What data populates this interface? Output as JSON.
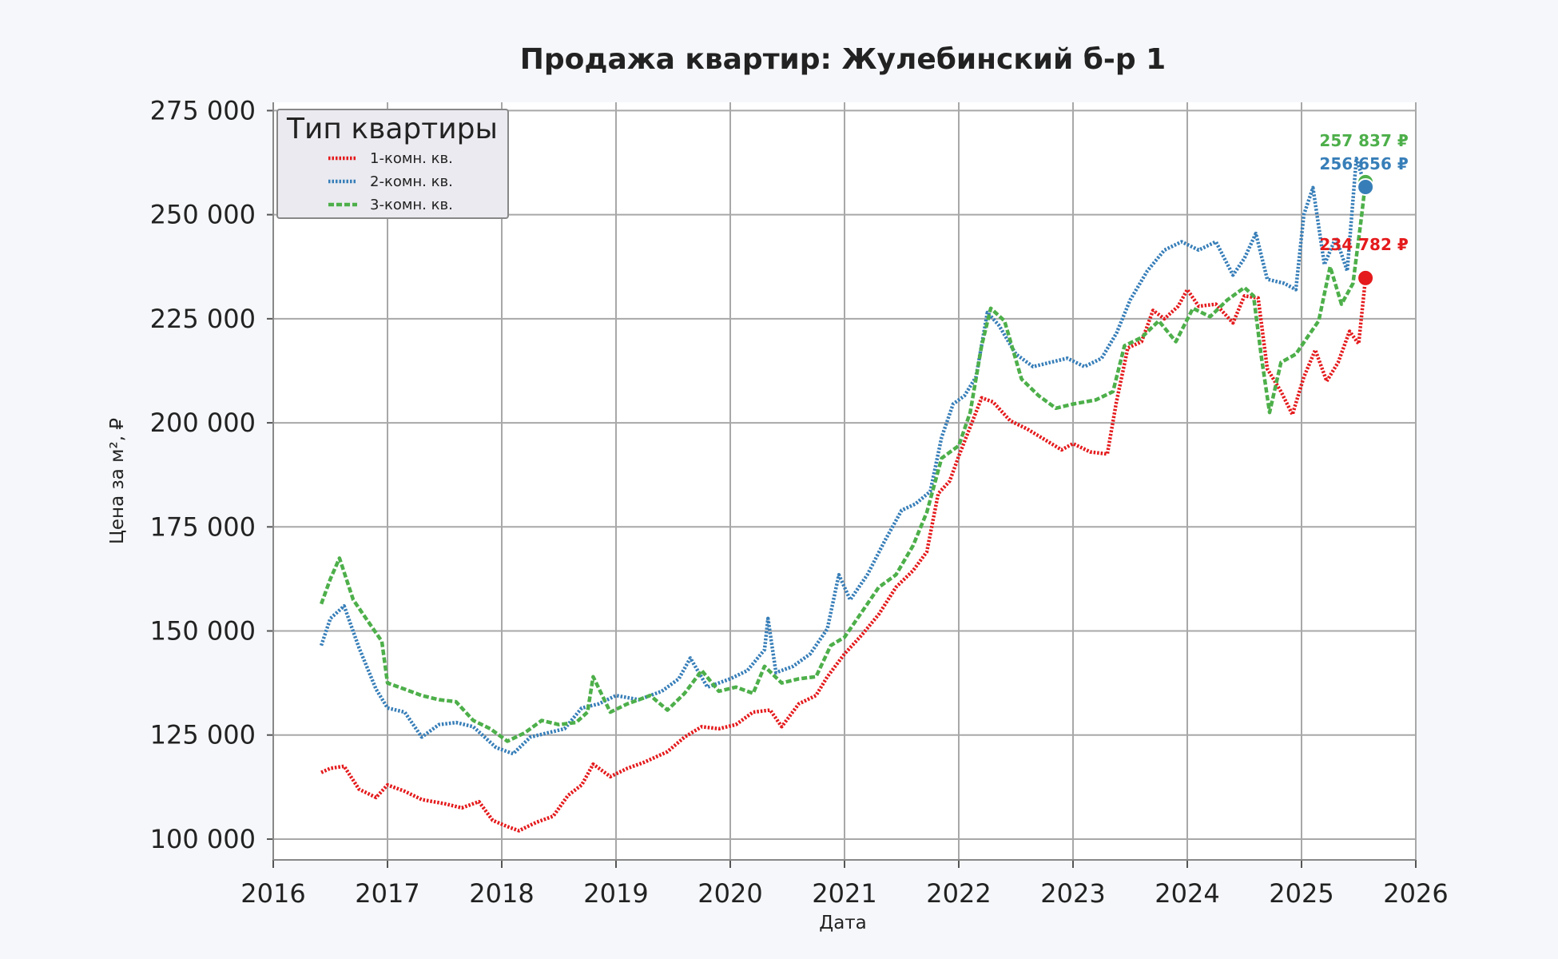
{
  "chart_data": {
    "type": "line",
    "title": "Продажа квартир: Жулебинский б-р 1",
    "xlabel": "Дата",
    "ylabel": "Цена за м², ₽",
    "xlim": [
      2016,
      2026
    ],
    "ylim": [
      95000,
      277000
    ],
    "x_ticks": [
      "2016",
      "2017",
      "2018",
      "2019",
      "2020",
      "2021",
      "2022",
      "2023",
      "2024",
      "2025",
      "2026"
    ],
    "y_ticks": [
      "100 000",
      "125 000",
      "150 000",
      "175 000",
      "200 000",
      "225 000",
      "250 000",
      "275 000"
    ],
    "grid": true,
    "legend": {
      "title": "Тип квартиры",
      "placement": "upper-left"
    },
    "colors": {
      "plot_background": "#ffffff",
      "page_background": "#f5f7fa",
      "grid": "#a8a8a8"
    },
    "series": [
      {
        "name": "1-комн. кв.",
        "color": "#e41a1c",
        "style": "dotted",
        "points": [
          [
            2016.42,
            116000
          ],
          [
            2016.5,
            117000
          ],
          [
            2016.62,
            117500
          ],
          [
            2016.75,
            112000
          ],
          [
            2016.9,
            110000
          ],
          [
            2017.0,
            113000
          ],
          [
            2017.15,
            111500
          ],
          [
            2017.3,
            109500
          ],
          [
            2017.5,
            108500
          ],
          [
            2017.65,
            107500
          ],
          [
            2017.8,
            109000
          ],
          [
            2017.92,
            104500
          ],
          [
            2018.05,
            103000
          ],
          [
            2018.15,
            102000
          ],
          [
            2018.3,
            104000
          ],
          [
            2018.45,
            105500
          ],
          [
            2018.58,
            110500
          ],
          [
            2018.7,
            113000
          ],
          [
            2018.8,
            118000
          ],
          [
            2018.95,
            115000
          ],
          [
            2019.1,
            117000
          ],
          [
            2019.25,
            118500
          ],
          [
            2019.45,
            121000
          ],
          [
            2019.6,
            124500
          ],
          [
            2019.75,
            127000
          ],
          [
            2019.9,
            126500
          ],
          [
            2020.05,
            127500
          ],
          [
            2020.2,
            130500
          ],
          [
            2020.35,
            131000
          ],
          [
            2020.45,
            127000
          ],
          [
            2020.6,
            132500
          ],
          [
            2020.75,
            134500
          ],
          [
            2020.85,
            139000
          ],
          [
            2021.0,
            144500
          ],
          [
            2021.15,
            149000
          ],
          [
            2021.3,
            154000
          ],
          [
            2021.45,
            160500
          ],
          [
            2021.6,
            164500
          ],
          [
            2021.72,
            169000
          ],
          [
            2021.82,
            183000
          ],
          [
            2021.92,
            186000
          ],
          [
            2022.0,
            192000
          ],
          [
            2022.1,
            199000
          ],
          [
            2022.2,
            206000
          ],
          [
            2022.3,
            205000
          ],
          [
            2022.45,
            200500
          ],
          [
            2022.6,
            198500
          ],
          [
            2022.75,
            196000
          ],
          [
            2022.9,
            193500
          ],
          [
            2023.0,
            195000
          ],
          [
            2023.15,
            193000
          ],
          [
            2023.3,
            192500
          ],
          [
            2023.38,
            205000
          ],
          [
            2023.48,
            218000
          ],
          [
            2023.6,
            219500
          ],
          [
            2023.7,
            227000
          ],
          [
            2023.8,
            225000
          ],
          [
            2023.92,
            228000
          ],
          [
            2024.0,
            232000
          ],
          [
            2024.1,
            228000
          ],
          [
            2024.25,
            228500
          ],
          [
            2024.4,
            224000
          ],
          [
            2024.5,
            230500
          ],
          [
            2024.62,
            230000
          ],
          [
            2024.7,
            213000
          ],
          [
            2024.82,
            207500
          ],
          [
            2024.92,
            202000
          ],
          [
            2025.02,
            211000
          ],
          [
            2025.12,
            217500
          ],
          [
            2025.22,
            210000
          ],
          [
            2025.32,
            214500
          ],
          [
            2025.42,
            222000
          ],
          [
            2025.5,
            219000
          ],
          [
            2025.56,
            234782
          ]
        ]
      },
      {
        "name": "2-комн. кв.",
        "color": "#377eb8",
        "style": "dotted",
        "points": [
          [
            2016.42,
            146500
          ],
          [
            2016.5,
            153000
          ],
          [
            2016.62,
            156000
          ],
          [
            2016.75,
            146000
          ],
          [
            2016.9,
            136000
          ],
          [
            2017.0,
            131500
          ],
          [
            2017.15,
            130500
          ],
          [
            2017.3,
            124500
          ],
          [
            2017.45,
            127500
          ],
          [
            2017.6,
            128000
          ],
          [
            2017.75,
            127000
          ],
          [
            2017.85,
            124500
          ],
          [
            2017.95,
            122000
          ],
          [
            2018.1,
            120500
          ],
          [
            2018.25,
            124500
          ],
          [
            2018.4,
            125500
          ],
          [
            2018.55,
            126500
          ],
          [
            2018.7,
            131500
          ],
          [
            2018.85,
            132500
          ],
          [
            2019.0,
            134500
          ],
          [
            2019.2,
            133500
          ],
          [
            2019.4,
            135500
          ],
          [
            2019.55,
            138500
          ],
          [
            2019.65,
            143500
          ],
          [
            2019.8,
            136500
          ],
          [
            2020.0,
            138500
          ],
          [
            2020.15,
            140500
          ],
          [
            2020.3,
            145500
          ],
          [
            2020.33,
            153000
          ],
          [
            2020.4,
            140000
          ],
          [
            2020.55,
            141500
          ],
          [
            2020.7,
            144500
          ],
          [
            2020.85,
            150500
          ],
          [
            2020.95,
            163500
          ],
          [
            2021.05,
            157500
          ],
          [
            2021.2,
            163500
          ],
          [
            2021.35,
            171500
          ],
          [
            2021.5,
            179000
          ],
          [
            2021.62,
            180500
          ],
          [
            2021.75,
            183500
          ],
          [
            2021.85,
            196500
          ],
          [
            2021.95,
            204500
          ],
          [
            2022.05,
            206500
          ],
          [
            2022.15,
            211000
          ],
          [
            2022.25,
            226500
          ],
          [
            2022.35,
            223500
          ],
          [
            2022.5,
            216500
          ],
          [
            2022.65,
            213500
          ],
          [
            2022.8,
            214500
          ],
          [
            2022.95,
            215500
          ],
          [
            2023.1,
            213500
          ],
          [
            2023.25,
            215500
          ],
          [
            2023.38,
            221500
          ],
          [
            2023.5,
            229500
          ],
          [
            2023.65,
            236500
          ],
          [
            2023.8,
            241500
          ],
          [
            2023.95,
            243500
          ],
          [
            2024.1,
            241500
          ],
          [
            2024.25,
            243500
          ],
          [
            2024.4,
            235500
          ],
          [
            2024.5,
            239500
          ],
          [
            2024.6,
            245500
          ],
          [
            2024.7,
            234500
          ],
          [
            2024.85,
            233500
          ],
          [
            2024.95,
            232000
          ],
          [
            2025.02,
            250000
          ],
          [
            2025.1,
            256500
          ],
          [
            2025.2,
            238000
          ],
          [
            2025.3,
            244500
          ],
          [
            2025.4,
            236500
          ],
          [
            2025.48,
            263500
          ],
          [
            2025.56,
            256656
          ]
        ]
      },
      {
        "name": "3-комн. кв.",
        "color": "#4daf4a",
        "style": "dashed",
        "points": [
          [
            2016.42,
            156500
          ],
          [
            2016.5,
            162500
          ],
          [
            2016.58,
            167500
          ],
          [
            2016.7,
            157500
          ],
          [
            2016.85,
            151500
          ],
          [
            2016.95,
            147500
          ],
          [
            2017.0,
            137500
          ],
          [
            2017.15,
            136000
          ],
          [
            2017.3,
            134500
          ],
          [
            2017.45,
            133500
          ],
          [
            2017.6,
            133000
          ],
          [
            2017.75,
            128500
          ],
          [
            2017.9,
            126500
          ],
          [
            2018.05,
            123500
          ],
          [
            2018.2,
            125500
          ],
          [
            2018.35,
            128500
          ],
          [
            2018.5,
            127500
          ],
          [
            2018.65,
            128000
          ],
          [
            2018.75,
            130500
          ],
          [
            2018.8,
            139000
          ],
          [
            2018.95,
            130500
          ],
          [
            2019.1,
            132500
          ],
          [
            2019.3,
            134500
          ],
          [
            2019.45,
            131000
          ],
          [
            2019.6,
            135000
          ],
          [
            2019.75,
            140500
          ],
          [
            2019.9,
            135500
          ],
          [
            2020.05,
            136500
          ],
          [
            2020.2,
            135000
          ],
          [
            2020.3,
            141500
          ],
          [
            2020.45,
            137500
          ],
          [
            2020.6,
            138500
          ],
          [
            2020.75,
            139000
          ],
          [
            2020.88,
            146500
          ],
          [
            2021.0,
            148500
          ],
          [
            2021.15,
            154500
          ],
          [
            2021.3,
            160500
          ],
          [
            2021.45,
            163500
          ],
          [
            2021.6,
            170500
          ],
          [
            2021.72,
            178500
          ],
          [
            2021.85,
            191500
          ],
          [
            2022.0,
            194500
          ],
          [
            2022.1,
            202500
          ],
          [
            2022.2,
            218500
          ],
          [
            2022.28,
            227500
          ],
          [
            2022.4,
            224500
          ],
          [
            2022.55,
            210500
          ],
          [
            2022.7,
            206500
          ],
          [
            2022.85,
            203500
          ],
          [
            2023.0,
            204500
          ],
          [
            2023.2,
            205500
          ],
          [
            2023.35,
            207500
          ],
          [
            2023.45,
            218500
          ],
          [
            2023.6,
            220500
          ],
          [
            2023.75,
            224500
          ],
          [
            2023.9,
            219500
          ],
          [
            2024.05,
            227500
          ],
          [
            2024.2,
            225500
          ],
          [
            2024.35,
            229500
          ],
          [
            2024.5,
            232500
          ],
          [
            2024.58,
            230500
          ],
          [
            2024.65,
            215500
          ],
          [
            2024.72,
            202500
          ],
          [
            2024.82,
            214500
          ],
          [
            2024.95,
            216500
          ],
          [
            2025.05,
            220500
          ],
          [
            2025.15,
            224500
          ],
          [
            2025.25,
            237500
          ],
          [
            2025.35,
            228500
          ],
          [
            2025.45,
            233500
          ],
          [
            2025.52,
            248500
          ],
          [
            2025.56,
            257837
          ]
        ]
      }
    ],
    "annotations": [
      {
        "series": "3-комн. кв.",
        "x": 2025.56,
        "y": 257837,
        "label": "257 837 ₽",
        "color": "#4daf4a"
      },
      {
        "series": "2-комн. кв.",
        "x": 2025.56,
        "y": 256656,
        "label": "256 656 ₽",
        "color": "#377eb8"
      },
      {
        "series": "1-комн. кв.",
        "x": 2025.56,
        "y": 234782,
        "label": "234 782 ₽",
        "color": "#e41a1c"
      }
    ]
  }
}
